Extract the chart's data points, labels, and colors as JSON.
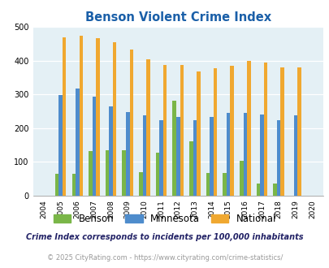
{
  "title": "Benson Violent Crime Index",
  "years": [
    2004,
    2005,
    2006,
    2007,
    2008,
    2009,
    2010,
    2011,
    2012,
    2013,
    2014,
    2015,
    2016,
    2017,
    2018,
    2019,
    2020
  ],
  "benson": [
    0,
    65,
    65,
    133,
    135,
    135,
    70,
    127,
    280,
    160,
    68,
    68,
    102,
    37,
    37,
    0,
    0
  ],
  "minnesota": [
    0,
    298,
    318,
    292,
    264,
    248,
    238,
    224,
    234,
    224,
    232,
    244,
    244,
    240,
    224,
    237,
    0
  ],
  "national": [
    0,
    469,
    474,
    467,
    455,
    432,
    405,
    388,
    388,
    368,
    377,
    384,
    398,
    394,
    380,
    380,
    0
  ],
  "benson_color": "#7ab648",
  "minnesota_color": "#4e8ccc",
  "national_color": "#f0a830",
  "bg_color": "#e4f0f5",
  "title_color": "#1a5fa8",
  "ylabel_max": 500,
  "yticks": [
    0,
    100,
    200,
    300,
    400,
    500
  ],
  "footnote1": "Crime Index corresponds to incidents per 100,000 inhabitants",
  "footnote2": "© 2025 CityRating.com - https://www.cityrating.com/crime-statistics/",
  "legend_labels": [
    "Benson",
    "Minnesota",
    "National"
  ]
}
